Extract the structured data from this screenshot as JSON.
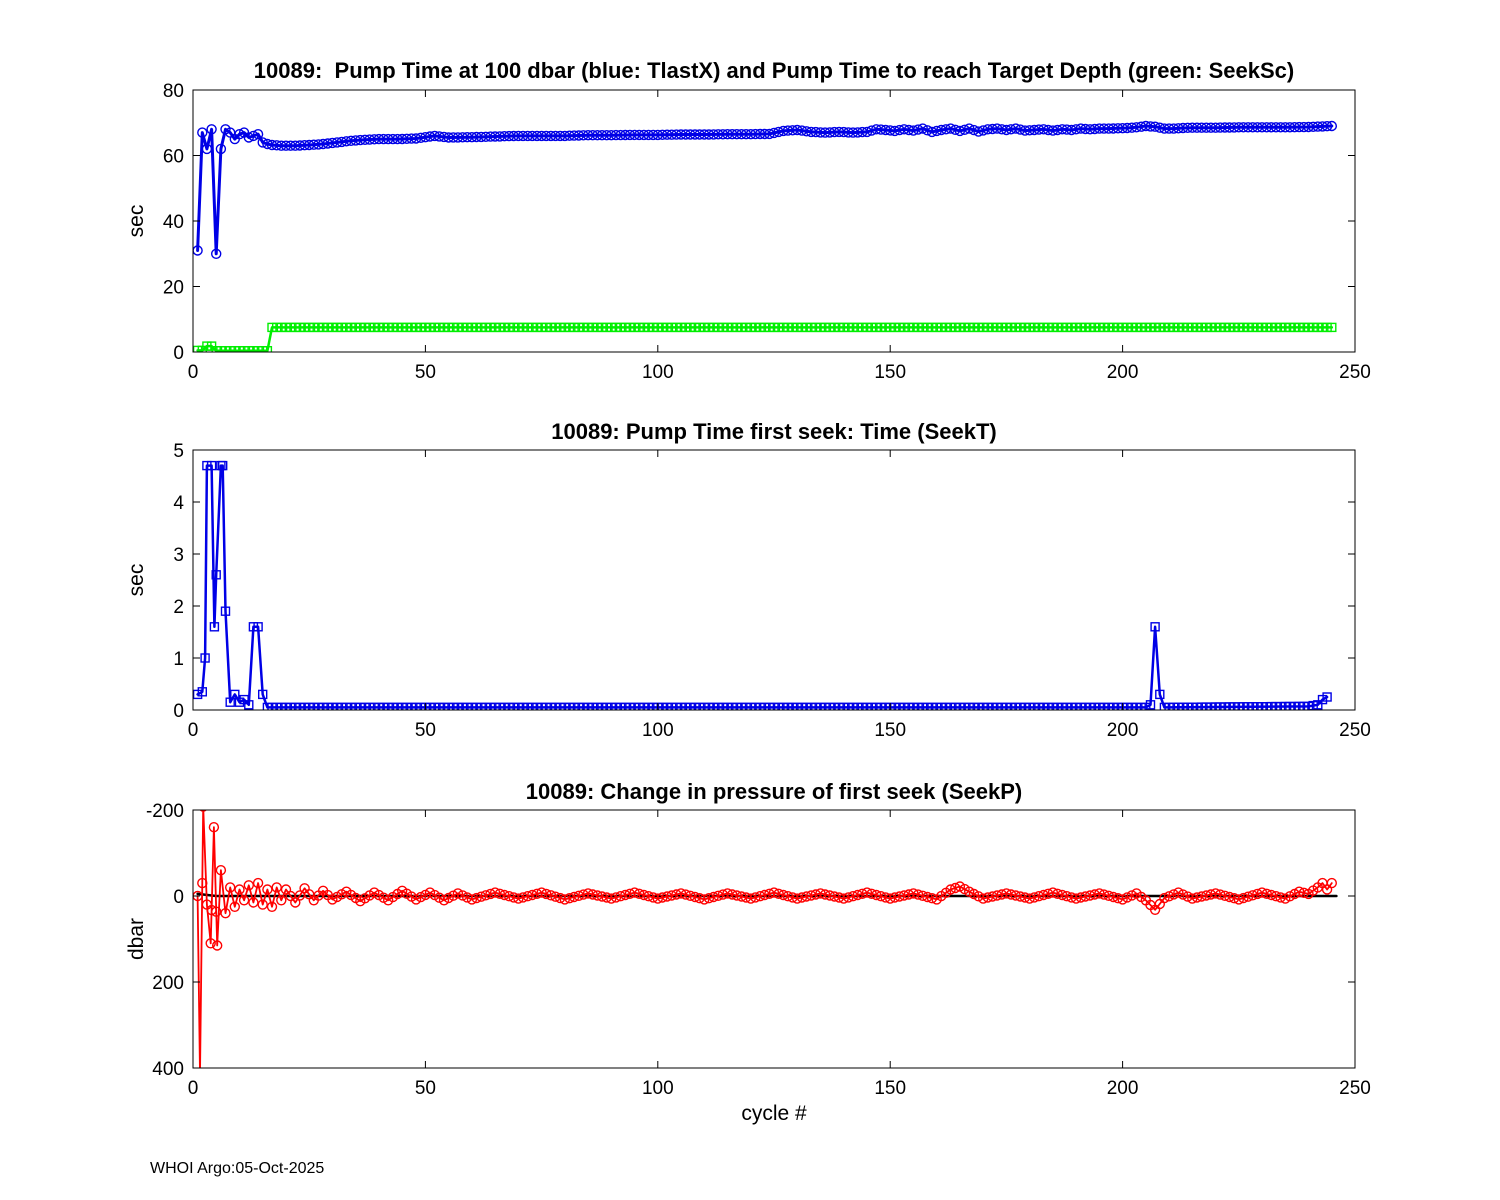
{
  "figure": {
    "footer": "WHOI Argo:05-Oct-2025",
    "background": "#ffffff"
  },
  "chart_data": [
    {
      "id": "pump-time-100dbar",
      "type": "line",
      "title": "10089:  Pump Time at 100 dbar (blue: TlastX) and Pump Time to reach Target Depth (green: SeekSc)",
      "ylabel": "sec",
      "xlabel": "",
      "xlim": [
        0,
        250
      ],
      "ylim": [
        0,
        80
      ],
      "xticks": [
        0,
        50,
        100,
        150,
        200,
        250
      ],
      "yticks": [
        0,
        20,
        40,
        60,
        80
      ],
      "ydir": "normal",
      "grid": false,
      "legend": "none",
      "series": [
        {
          "name": "TlastX",
          "color": "#0000e6",
          "marker": "circle",
          "marker_size": 9,
          "line_width": 3,
          "keypoints": [
            [
              1,
              31
            ],
            [
              2,
              67
            ],
            [
              3,
              62
            ],
            [
              4,
              68
            ],
            [
              5,
              30
            ],
            [
              6,
              62
            ],
            [
              7,
              68
            ],
            [
              8,
              67
            ],
            [
              9,
              65
            ],
            [
              10,
              66.5
            ],
            [
              11,
              67
            ],
            [
              12,
              65.5
            ],
            [
              13,
              66
            ],
            [
              14,
              66.5
            ],
            [
              15,
              64
            ],
            [
              16,
              63.5
            ],
            [
              17,
              63.2
            ],
            [
              19,
              63
            ],
            [
              22,
              63
            ],
            [
              25,
              63.2
            ],
            [
              28,
              63.5
            ],
            [
              31,
              64
            ],
            [
              34,
              64.5
            ],
            [
              37,
              64.8
            ],
            [
              40,
              65
            ],
            [
              44,
              65
            ],
            [
              48,
              65.2
            ],
            [
              52,
              66
            ],
            [
              55,
              65.5
            ],
            [
              60,
              65.6
            ],
            [
              65,
              65.8
            ],
            [
              70,
              66
            ],
            [
              75,
              66
            ],
            [
              80,
              66
            ],
            [
              85,
              66.2
            ],
            [
              90,
              66.2
            ],
            [
              95,
              66.3
            ],
            [
              100,
              66.3
            ],
            [
              105,
              66.4
            ],
            [
              110,
              66.4
            ],
            [
              115,
              66.5
            ],
            [
              120,
              66.5
            ],
            [
              124,
              66.6
            ],
            [
              127,
              67.5
            ],
            [
              130,
              67.8
            ],
            [
              133,
              67.2
            ],
            [
              136,
              67
            ],
            [
              139,
              67.2
            ],
            [
              142,
              67
            ],
            [
              145,
              67.2
            ],
            [
              147,
              68
            ],
            [
              149,
              67.8
            ],
            [
              151,
              67.5
            ],
            [
              153,
              68
            ],
            [
              155,
              67.6
            ],
            [
              157,
              68.2
            ],
            [
              159,
              67.2
            ],
            [
              161,
              67.8
            ],
            [
              163,
              68.2
            ],
            [
              165,
              67.5
            ],
            [
              167,
              68.2
            ],
            [
              169,
              67.3
            ],
            [
              171,
              68
            ],
            [
              173,
              68.2
            ],
            [
              175,
              67.8
            ],
            [
              177,
              68.2
            ],
            [
              179,
              67.6
            ],
            [
              181,
              67.8
            ],
            [
              183,
              68
            ],
            [
              185,
              67.6
            ],
            [
              187,
              68
            ],
            [
              189,
              67.8
            ],
            [
              191,
              68.2
            ],
            [
              193,
              68
            ],
            [
              195,
              68.2
            ],
            [
              197,
              68.2
            ],
            [
              199,
              68.3
            ],
            [
              201,
              68.4
            ],
            [
              203,
              68.6
            ],
            [
              205,
              69
            ],
            [
              207,
              68.8
            ],
            [
              209,
              68.2
            ],
            [
              211,
              68.2
            ],
            [
              213,
              68.4
            ],
            [
              215,
              68.5
            ],
            [
              220,
              68.5
            ],
            [
              225,
              68.6
            ],
            [
              230,
              68.6
            ],
            [
              235,
              68.6
            ],
            [
              240,
              68.7
            ],
            [
              245,
              69
            ]
          ]
        },
        {
          "name": "SeekSc",
          "color": "#00ee00",
          "marker": "square",
          "marker_size": 8,
          "line_width": 2.5,
          "keypoints": [
            [
              1,
              0.5
            ],
            [
              2,
              0.5
            ],
            [
              3,
              1.8
            ],
            [
              4,
              1.8
            ],
            [
              5,
              0.4
            ],
            [
              16,
              0.4
            ],
            [
              17,
              7.5
            ],
            [
              245,
              7.5
            ]
          ]
        }
      ]
    },
    {
      "id": "pump-time-first-seek",
      "type": "line",
      "title": "10089: Pump Time first seek: Time (SeekT)",
      "ylabel": "sec",
      "xlabel": "",
      "xlim": [
        0,
        250
      ],
      "ylim": [
        0,
        5
      ],
      "xticks": [
        0,
        50,
        100,
        150,
        200,
        250
      ],
      "yticks": [
        0,
        1,
        2,
        3,
        4,
        5
      ],
      "ydir": "normal",
      "grid": false,
      "legend": "none",
      "series": [
        {
          "name": "SeekT",
          "color": "#0000e6",
          "marker": "square",
          "marker_size": 8,
          "line_width": 2.5,
          "keypoints": [
            [
              1,
              0.3
            ],
            [
              2,
              0.35
            ],
            [
              2.6,
              1.0
            ],
            [
              3,
              4.7
            ],
            [
              4,
              4.7
            ],
            [
              4.6,
              1.6
            ],
            [
              5,
              2.6
            ],
            [
              6,
              4.7
            ],
            [
              6.4,
              4.7
            ],
            [
              7,
              1.9
            ],
            [
              8,
              0.15
            ],
            [
              9,
              0.3
            ],
            [
              10,
              0.15
            ],
            [
              11,
              0.2
            ],
            [
              12,
              0.1
            ],
            [
              13,
              1.6
            ],
            [
              14,
              1.6
            ],
            [
              15,
              0.3
            ],
            [
              16,
              0.05
            ],
            [
              205,
              0.05
            ],
            [
              206,
              0.1
            ],
            [
              207,
              1.6
            ],
            [
              208,
              0.3
            ],
            [
              209,
              0.05
            ],
            [
              240,
              0.07
            ],
            [
              242,
              0.1
            ],
            [
              243,
              0.2
            ],
            [
              244,
              0.25
            ]
          ]
        }
      ]
    },
    {
      "id": "change-in-pressure-first-seek",
      "type": "line",
      "title": "10089: Change in pressure of first seek (SeekP)",
      "ylabel": "dbar",
      "xlabel": "cycle #",
      "xlim": [
        0,
        250
      ],
      "ylim": [
        -200,
        400
      ],
      "xticks": [
        0,
        50,
        100,
        150,
        200,
        250
      ],
      "yticks": [
        -200,
        0,
        200,
        400
      ],
      "ydir": "reverse",
      "grid": false,
      "legend": "none",
      "series": [
        {
          "name": "baseline",
          "color": "#000000",
          "marker": "none",
          "marker_size": 0,
          "line_width": 2.5,
          "keypoints": [
            [
              1,
              -5
            ],
            [
              5,
              0
            ],
            [
              243,
              0
            ],
            [
              246,
              0
            ]
          ]
        },
        {
          "name": "SeekP",
          "color": "#ff0000",
          "marker": "circle",
          "marker_size": 9,
          "line_width": 1.8,
          "keypoints": [
            [
              1,
              0
            ],
            [
              1.5,
              415
            ],
            [
              2.2,
              -208
            ],
            [
              3,
              20
            ],
            [
              3.8,
              110
            ],
            [
              4.5,
              -160
            ],
            [
              5.2,
              115
            ],
            [
              6,
              -60
            ],
            [
              7,
              40
            ],
            [
              8,
              -20
            ],
            [
              9,
              25
            ],
            [
              10,
              -15
            ],
            [
              11,
              10
            ],
            [
              12,
              -25
            ],
            [
              13,
              15
            ],
            [
              14,
              -30
            ],
            [
              15,
              20
            ],
            [
              16,
              -15
            ],
            [
              17,
              25
            ],
            [
              18,
              -20
            ],
            [
              19,
              10
            ],
            [
              20,
              -15
            ],
            [
              22,
              15
            ],
            [
              24,
              -18
            ],
            [
              26,
              10
            ],
            [
              28,
              -12
            ],
            [
              30,
              8
            ],
            [
              33,
              -10
            ],
            [
              36,
              12
            ],
            [
              39,
              -8
            ],
            [
              42,
              10
            ],
            [
              45,
              -12
            ],
            [
              48,
              8
            ],
            [
              51,
              -8
            ],
            [
              54,
              10
            ],
            [
              57,
              -6
            ],
            [
              60,
              8
            ],
            [
              65,
              -8
            ],
            [
              70,
              6
            ],
            [
              75,
              -8
            ],
            [
              80,
              8
            ],
            [
              85,
              -6
            ],
            [
              90,
              6
            ],
            [
              95,
              -8
            ],
            [
              100,
              6
            ],
            [
              105,
              -6
            ],
            [
              110,
              8
            ],
            [
              115,
              -6
            ],
            [
              120,
              6
            ],
            [
              125,
              -8
            ],
            [
              130,
              6
            ],
            [
              135,
              -6
            ],
            [
              140,
              6
            ],
            [
              145,
              -8
            ],
            [
              150,
              6
            ],
            [
              155,
              -6
            ],
            [
              160,
              8
            ],
            [
              163,
              -15
            ],
            [
              165,
              -22
            ],
            [
              167,
              -10
            ],
            [
              170,
              6
            ],
            [
              175,
              -6
            ],
            [
              180,
              6
            ],
            [
              185,
              -8
            ],
            [
              190,
              6
            ],
            [
              195,
              -6
            ],
            [
              200,
              8
            ],
            [
              203,
              -6
            ],
            [
              205,
              10
            ],
            [
              207,
              32
            ],
            [
              209,
              5
            ],
            [
              212,
              -8
            ],
            [
              215,
              6
            ],
            [
              220,
              -6
            ],
            [
              225,
              8
            ],
            [
              230,
              -8
            ],
            [
              235,
              6
            ],
            [
              238,
              -10
            ],
            [
              240,
              -5
            ],
            [
              242,
              -20
            ],
            [
              243,
              -30
            ],
            [
              244,
              -15
            ],
            [
              245,
              -30
            ]
          ]
        }
      ]
    }
  ]
}
